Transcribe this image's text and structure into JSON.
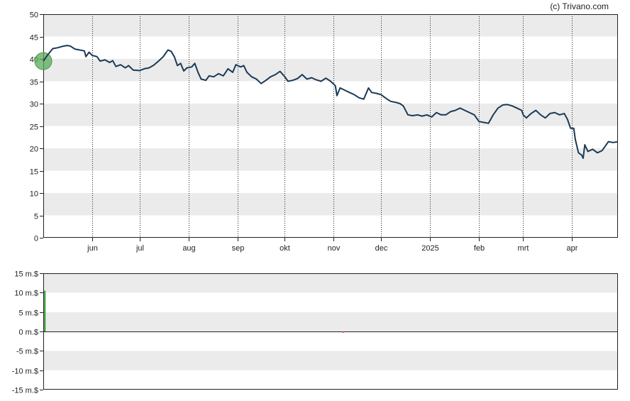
{
  "copyright": "(c) Trivano.com",
  "chart_data": [
    {
      "type": "line",
      "title": "",
      "xlabel": "",
      "ylabel": "",
      "ylim": [
        0,
        50
      ],
      "y_ticks": [
        0,
        5,
        10,
        15,
        20,
        25,
        30,
        35,
        40,
        45,
        50
      ],
      "x_domain": [
        "2024-05-01",
        "2025-04-30"
      ],
      "month_ticks": [
        {
          "label": "jun",
          "date": "2024-06-01"
        },
        {
          "label": "jul",
          "date": "2024-07-01"
        },
        {
          "label": "aug",
          "date": "2024-08-01"
        },
        {
          "label": "sep",
          "date": "2024-09-01"
        },
        {
          "label": "okt",
          "date": "2024-10-01"
        },
        {
          "label": "nov",
          "date": "2024-11-01"
        },
        {
          "label": "dec",
          "date": "2024-12-01"
        },
        {
          "label": "2025",
          "date": "2025-01-01"
        },
        {
          "label": "feb",
          "date": "2025-02-01"
        },
        {
          "label": "mrt",
          "date": "2025-03-01"
        },
        {
          "label": "apr",
          "date": "2025-04-01"
        }
      ],
      "grid": "alternating horizontal bands, dotted vertical month lines",
      "line_color": "#1b3a57",
      "marker": {
        "date": "2024-05-01",
        "value": 39.5,
        "color": "#5aa85a"
      },
      "series": [
        {
          "points": [
            [
              "2024-05-01",
              39.5
            ],
            [
              "2024-05-04",
              41.0
            ],
            [
              "2024-05-07",
              42.3
            ],
            [
              "2024-05-10",
              42.5
            ],
            [
              "2024-05-13",
              42.8
            ],
            [
              "2024-05-16",
              43.0
            ],
            [
              "2024-05-18",
              42.9
            ],
            [
              "2024-05-21",
              42.2
            ],
            [
              "2024-05-24",
              42.0
            ],
            [
              "2024-05-27",
              41.8
            ],
            [
              "2024-05-28",
              40.5
            ],
            [
              "2024-05-30",
              41.5
            ],
            [
              "2024-06-01",
              40.8
            ],
            [
              "2024-06-04",
              40.5
            ],
            [
              "2024-06-06",
              39.5
            ],
            [
              "2024-06-09",
              39.8
            ],
            [
              "2024-06-12",
              39.2
            ],
            [
              "2024-06-14",
              39.6
            ],
            [
              "2024-06-16",
              38.3
            ],
            [
              "2024-06-19",
              38.7
            ],
            [
              "2024-06-22",
              38.0
            ],
            [
              "2024-06-24",
              38.5
            ],
            [
              "2024-06-27",
              37.5
            ],
            [
              "2024-07-01",
              37.4
            ],
            [
              "2024-07-04",
              37.8
            ],
            [
              "2024-07-07",
              38.0
            ],
            [
              "2024-07-10",
              38.6
            ],
            [
              "2024-07-13",
              39.5
            ],
            [
              "2024-07-16",
              40.5
            ],
            [
              "2024-07-19",
              42.0
            ],
            [
              "2024-07-21",
              41.7
            ],
            [
              "2024-07-23",
              40.5
            ],
            [
              "2024-07-25",
              38.5
            ],
            [
              "2024-07-27",
              39.0
            ],
            [
              "2024-07-29",
              37.3
            ],
            [
              "2024-07-31",
              38.0
            ],
            [
              "2024-08-03",
              38.2
            ],
            [
              "2024-08-05",
              39.0
            ],
            [
              "2024-08-07",
              37.0
            ],
            [
              "2024-08-09",
              35.5
            ],
            [
              "2024-08-12",
              35.2
            ],
            [
              "2024-08-14",
              36.2
            ],
            [
              "2024-08-17",
              36.0
            ],
            [
              "2024-08-20",
              36.7
            ],
            [
              "2024-08-23",
              36.2
            ],
            [
              "2024-08-26",
              37.8
            ],
            [
              "2024-08-29",
              37.0
            ],
            [
              "2024-08-31",
              38.7
            ],
            [
              "2024-09-03",
              38.2
            ],
            [
              "2024-09-05",
              38.5
            ],
            [
              "2024-09-07",
              37.0
            ],
            [
              "2024-09-10",
              36.0
            ],
            [
              "2024-09-13",
              35.5
            ],
            [
              "2024-09-16",
              34.5
            ],
            [
              "2024-09-19",
              35.2
            ],
            [
              "2024-09-22",
              36.0
            ],
            [
              "2024-09-25",
              36.5
            ],
            [
              "2024-09-28",
              37.2
            ],
            [
              "2024-10-01",
              36.0
            ],
            [
              "2024-10-03",
              35.0
            ],
            [
              "2024-10-06",
              35.2
            ],
            [
              "2024-10-09",
              35.6
            ],
            [
              "2024-10-12",
              36.5
            ],
            [
              "2024-10-15",
              35.5
            ],
            [
              "2024-10-18",
              35.8
            ],
            [
              "2024-10-21",
              35.3
            ],
            [
              "2024-10-24",
              35.0
            ],
            [
              "2024-10-27",
              35.7
            ],
            [
              "2024-10-30",
              35.0
            ],
            [
              "2024-11-02",
              34.0
            ],
            [
              "2024-11-03",
              31.8
            ],
            [
              "2024-11-05",
              33.5
            ],
            [
              "2024-11-08",
              33.0
            ],
            [
              "2024-11-11",
              32.5
            ],
            [
              "2024-11-14",
              32.0
            ],
            [
              "2024-11-17",
              31.3
            ],
            [
              "2024-11-20",
              31.0
            ],
            [
              "2024-11-23",
              33.5
            ],
            [
              "2024-11-25",
              32.5
            ],
            [
              "2024-11-28",
              32.3
            ],
            [
              "2024-12-01",
              32.0
            ],
            [
              "2024-12-04",
              31.2
            ],
            [
              "2024-12-07",
              30.5
            ],
            [
              "2024-12-10",
              30.3
            ],
            [
              "2024-12-13",
              30.0
            ],
            [
              "2024-12-15",
              29.5
            ],
            [
              "2024-12-18",
              27.5
            ],
            [
              "2024-12-21",
              27.3
            ],
            [
              "2024-12-24",
              27.5
            ],
            [
              "2024-12-27",
              27.2
            ],
            [
              "2024-12-30",
              27.5
            ],
            [
              "2025-01-02",
              27.0
            ],
            [
              "2025-01-05",
              28.0
            ],
            [
              "2025-01-08",
              27.5
            ],
            [
              "2025-01-11",
              27.5
            ],
            [
              "2025-01-14",
              28.2
            ],
            [
              "2025-01-17",
              28.5
            ],
            [
              "2025-01-20",
              29.0
            ],
            [
              "2025-01-23",
              28.5
            ],
            [
              "2025-01-26",
              28.0
            ],
            [
              "2025-01-29",
              27.5
            ],
            [
              "2025-02-01",
              26.0
            ],
            [
              "2025-02-04",
              25.8
            ],
            [
              "2025-02-07",
              25.6
            ],
            [
              "2025-02-10",
              27.5
            ],
            [
              "2025-02-13",
              29.0
            ],
            [
              "2025-02-16",
              29.7
            ],
            [
              "2025-02-19",
              29.8
            ],
            [
              "2025-02-22",
              29.5
            ],
            [
              "2025-02-25",
              29.0
            ],
            [
              "2025-02-28",
              28.5
            ],
            [
              "2025-03-01",
              27.5
            ],
            [
              "2025-03-03",
              26.8
            ],
            [
              "2025-03-06",
              27.8
            ],
            [
              "2025-03-09",
              28.5
            ],
            [
              "2025-03-12",
              27.5
            ],
            [
              "2025-03-15",
              26.8
            ],
            [
              "2025-03-18",
              27.8
            ],
            [
              "2025-03-21",
              28.0
            ],
            [
              "2025-03-24",
              27.5
            ],
            [
              "2025-03-27",
              27.8
            ],
            [
              "2025-03-29",
              26.5
            ],
            [
              "2025-03-31",
              24.5
            ],
            [
              "2025-04-02",
              24.5
            ],
            [
              "2025-04-03",
              22.0
            ],
            [
              "2025-04-05",
              19.0
            ],
            [
              "2025-04-07",
              18.5
            ],
            [
              "2025-04-08",
              17.8
            ],
            [
              "2025-04-09",
              20.8
            ],
            [
              "2025-04-11",
              19.3
            ],
            [
              "2025-04-14",
              19.8
            ],
            [
              "2025-04-17",
              19.0
            ],
            [
              "2025-04-20",
              19.5
            ],
            [
              "2025-04-22",
              20.5
            ],
            [
              "2025-04-24",
              21.5
            ],
            [
              "2025-04-27",
              21.3
            ],
            [
              "2025-04-30",
              21.5
            ]
          ]
        }
      ]
    },
    {
      "type": "bar",
      "title": "",
      "xlabel": "",
      "ylabel": "",
      "ylim": [
        -15,
        15
      ],
      "y_ticks": [
        "-15 m.$",
        "-10 m.$",
        "-5 m.$",
        "0 m.$",
        "5 m.$",
        "10 m.$",
        "15 m.$"
      ],
      "y_tick_values": [
        -15,
        -10,
        -5,
        0,
        5,
        10,
        15
      ],
      "x_domain": [
        "2024-05-01",
        "2025-04-30"
      ],
      "grid": "alternating horizontal bands",
      "bars": [
        {
          "date": "2024-05-02",
          "value": 10.5,
          "color": "#2e9a2e"
        },
        {
          "date": "2024-11-07",
          "value": -0.3,
          "color": "#cc2222"
        }
      ]
    }
  ]
}
